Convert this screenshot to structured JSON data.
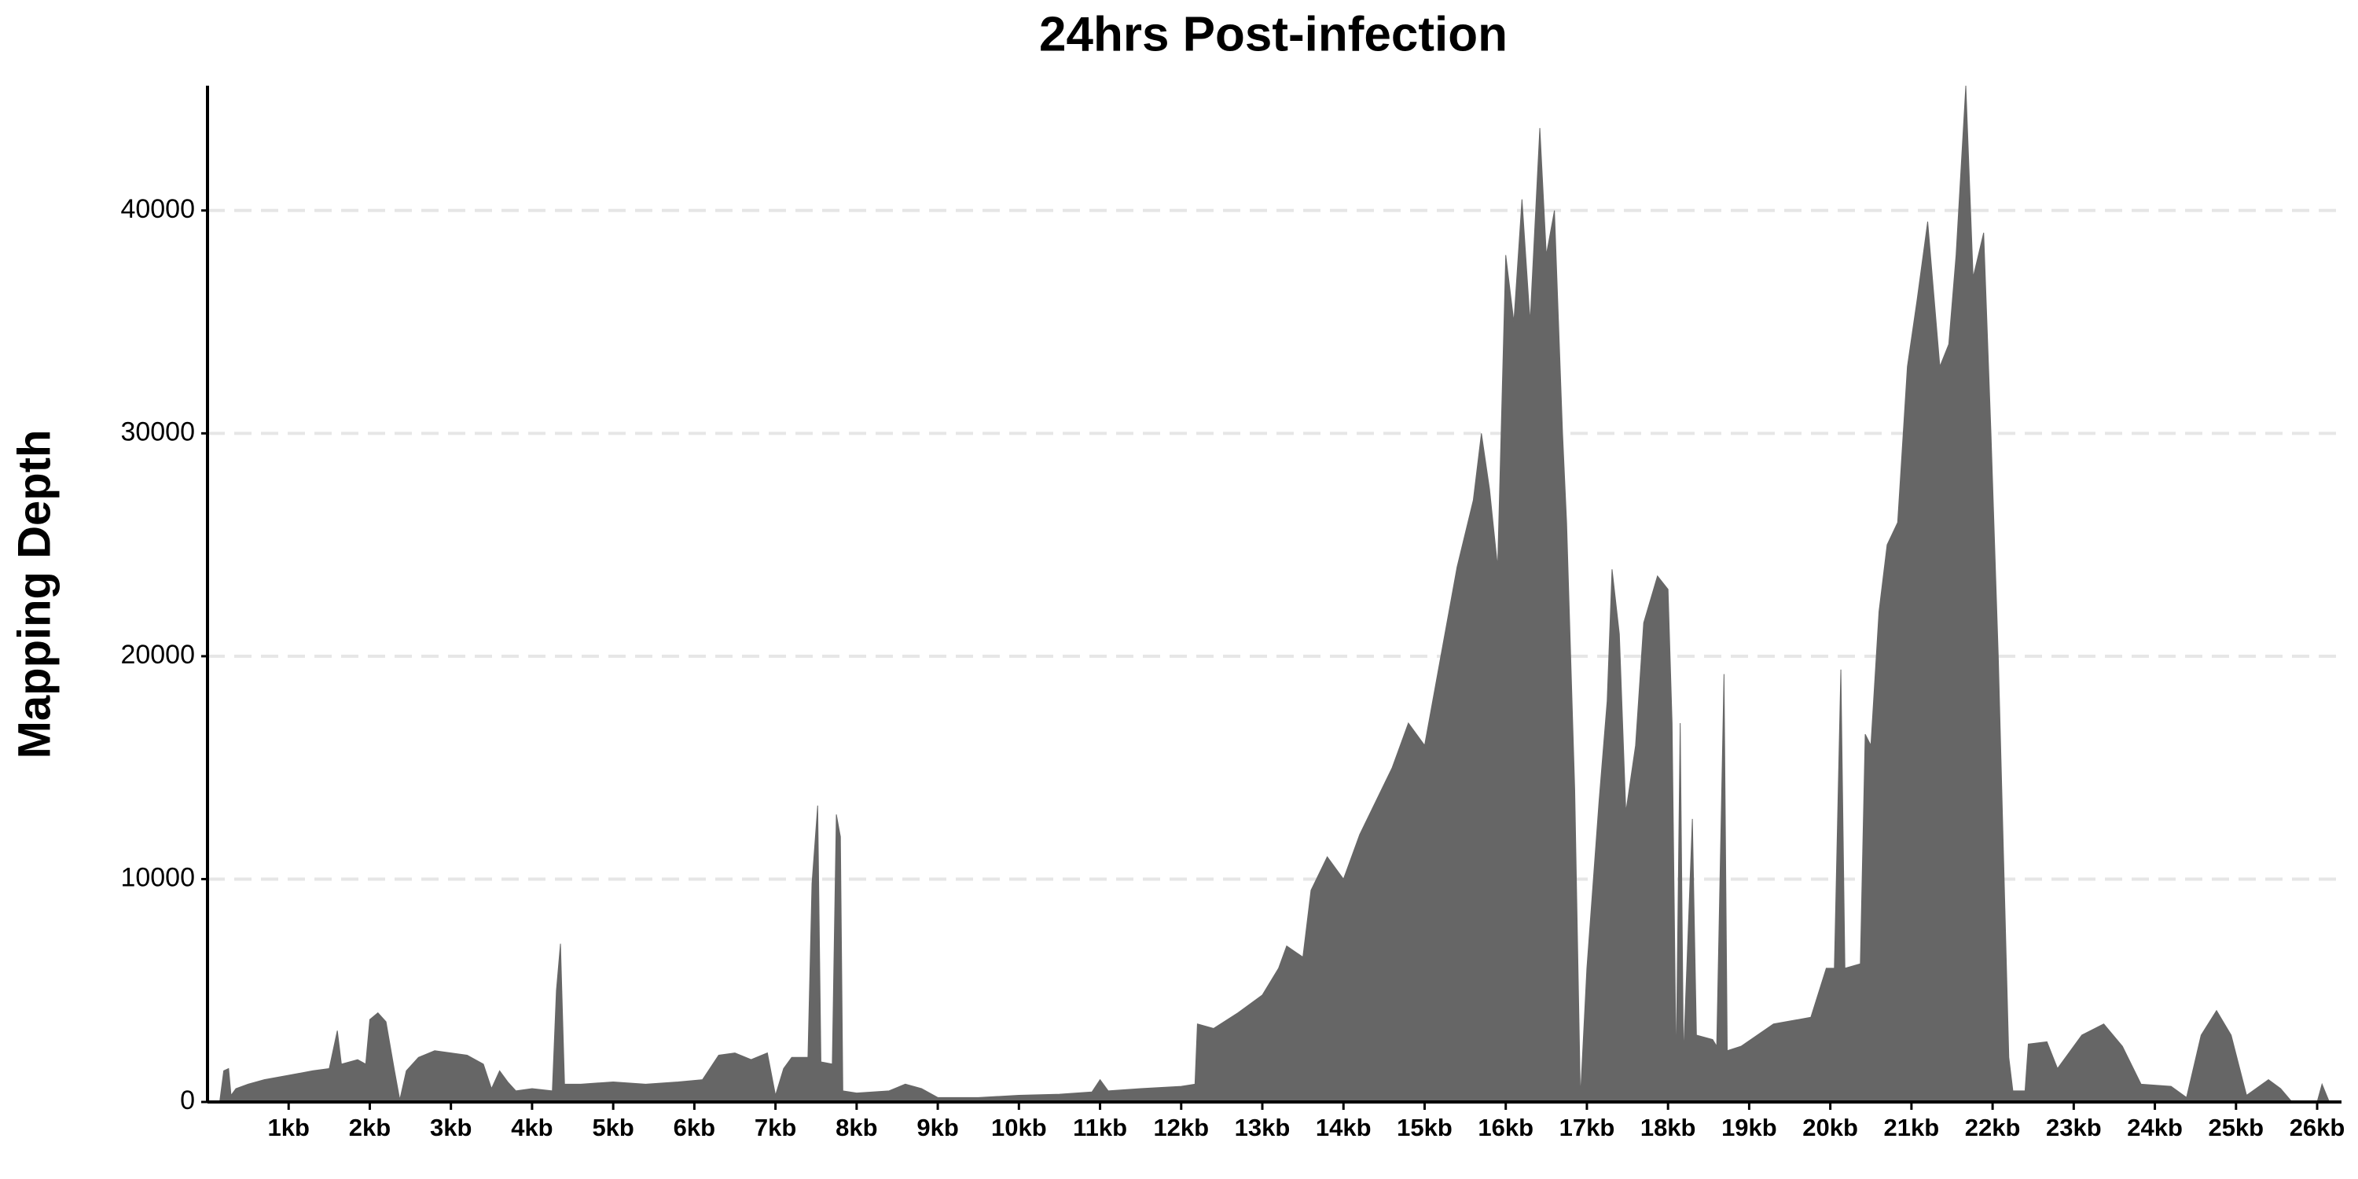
{
  "chart_data": {
    "type": "area",
    "title": "24hrs Post-infection",
    "y_label": "Mapping Depth",
    "color": "#666666",
    "grid": true,
    "x": [
      150,
      200,
      260,
      290,
      350,
      500,
      700,
      1000,
      1300,
      1500,
      1600,
      1650,
      1850,
      1950,
      2000,
      2100,
      2200,
      2300,
      2370,
      2450,
      2600,
      2800,
      3000,
      3200,
      3400,
      3500,
      3600,
      3700,
      3800,
      4000,
      4250,
      4300,
      4350,
      4400,
      4600,
      5000,
      5400,
      5800,
      6100,
      6300,
      6500,
      6700,
      6900,
      7000,
      7100,
      7200,
      7400,
      7450,
      7520,
      7560,
      7700,
      7750,
      7800,
      7830,
      8000,
      8400,
      8600,
      8800,
      9000,
      9500,
      10000,
      10500,
      10900,
      11000,
      11100,
      11500,
      12000,
      12170,
      12200,
      12400,
      12700,
      13000,
      13200,
      13300,
      13500,
      13600,
      13800,
      14000,
      14200,
      14400,
      14600,
      14800,
      15000,
      15200,
      15400,
      15600,
      15700,
      15800,
      15900,
      16000,
      16100,
      16200,
      16300,
      16420,
      16500,
      16600,
      16700,
      16750,
      16850,
      16920,
      17000,
      17150,
      17250,
      17310,
      17400,
      17480,
      17600,
      17700,
      17870,
      18000,
      18050,
      18100,
      18150,
      18190,
      18300,
      18350,
      18550,
      18600,
      18690,
      18730,
      18900,
      19300,
      19760,
      19950,
      20050,
      20130,
      20180,
      20370,
      20430,
      20500,
      20600,
      20700,
      20830,
      20950,
      21070,
      21200,
      21350,
      21460,
      21550,
      21670,
      21760,
      21890,
      21980,
      22070,
      22200,
      22250,
      22400,
      22440,
      22670,
      22800,
      23100,
      23370,
      23600,
      23830,
      24200,
      24390,
      24570,
      24760,
      24940,
      25130,
      25400,
      25550,
      25690,
      26000,
      26060,
      26150
    ],
    "values": [
      0,
      1400,
      1500,
      300,
      600,
      800,
      1000,
      1200,
      1400,
      1500,
      3200,
      1700,
      1900,
      1700,
      3700,
      4000,
      3600,
      1500,
      100,
      1400,
      2000,
      2300,
      2200,
      2100,
      1700,
      600,
      1400,
      900,
      500,
      600,
      500,
      5000,
      7100,
      800,
      800,
      900,
      800,
      900,
      1000,
      2100,
      2200,
      1900,
      2200,
      300,
      1500,
      2000,
      2000,
      9800,
      13300,
      1800,
      1700,
      12900,
      11900,
      500,
      400,
      500,
      800,
      600,
      200,
      200,
      300,
      350,
      450,
      1000,
      500,
      600,
      700,
      800,
      3500,
      3300,
      4000,
      4800,
      6000,
      7000,
      6500,
      9500,
      11000,
      10000,
      12000,
      13500,
      15000,
      17000,
      16000,
      20000,
      24000,
      27000,
      30000,
      27500,
      24000,
      38000,
      35000,
      40500,
      35000,
      43700,
      38000,
      40000,
      30000,
      26000,
      14000,
      200,
      6000,
      13500,
      18000,
      23900,
      21000,
      13000,
      16000,
      21500,
      23600,
      23000,
      17000,
      1500,
      17000,
      2000,
      12700,
      3000,
      2800,
      2500,
      19200,
      2300,
      2500,
      3500,
      3800,
      6000,
      6000,
      19400,
      6000,
      6200,
      16500,
      16000,
      22000,
      25000,
      26000,
      33000,
      36000,
      39500,
      33000,
      34000,
      38000,
      45600,
      37000,
      39000,
      30000,
      20000,
      2000,
      500,
      500,
      2600,
      2700,
      1500,
      3000,
      3500,
      2500,
      800,
      700,
      200,
      3000,
      4100,
      3000,
      300,
      1000,
      600,
      0,
      0,
      800,
      0
    ],
    "xlim": [
      0,
      26300
    ],
    "ylim": [
      0,
      45600
    ],
    "yticks": [
      0,
      10000,
      20000,
      30000,
      40000
    ],
    "xticks": [
      {
        "value": 1000,
        "label": "1kb"
      },
      {
        "value": 2000,
        "label": "2kb"
      },
      {
        "value": 3000,
        "label": "3kb"
      },
      {
        "value": 4000,
        "label": "4kb"
      },
      {
        "value": 5000,
        "label": "5kb"
      },
      {
        "value": 6000,
        "label": "6kb"
      },
      {
        "value": 7000,
        "label": "7kb"
      },
      {
        "value": 8000,
        "label": "8kb"
      },
      {
        "value": 9000,
        "label": "9kb"
      },
      {
        "value": 10000,
        "label": "10kb"
      },
      {
        "value": 11000,
        "label": "11kb"
      },
      {
        "value": 12000,
        "label": "12kb"
      },
      {
        "value": 13000,
        "label": "13kb"
      },
      {
        "value": 14000,
        "label": "14kb"
      },
      {
        "value": 15000,
        "label": "15kb"
      },
      {
        "value": 16000,
        "label": "16kb"
      },
      {
        "value": 17000,
        "label": "17kb"
      },
      {
        "value": 18000,
        "label": "18kb"
      },
      {
        "value": 19000,
        "label": "19kb"
      },
      {
        "value": 20000,
        "label": "20kb"
      },
      {
        "value": 21000,
        "label": "21kb"
      },
      {
        "value": 22000,
        "label": "22kb"
      },
      {
        "value": 23000,
        "label": "23kb"
      },
      {
        "value": 24000,
        "label": "24kb"
      },
      {
        "value": 25000,
        "label": "25kb"
      },
      {
        "value": 26000,
        "label": "26kb"
      }
    ]
  }
}
